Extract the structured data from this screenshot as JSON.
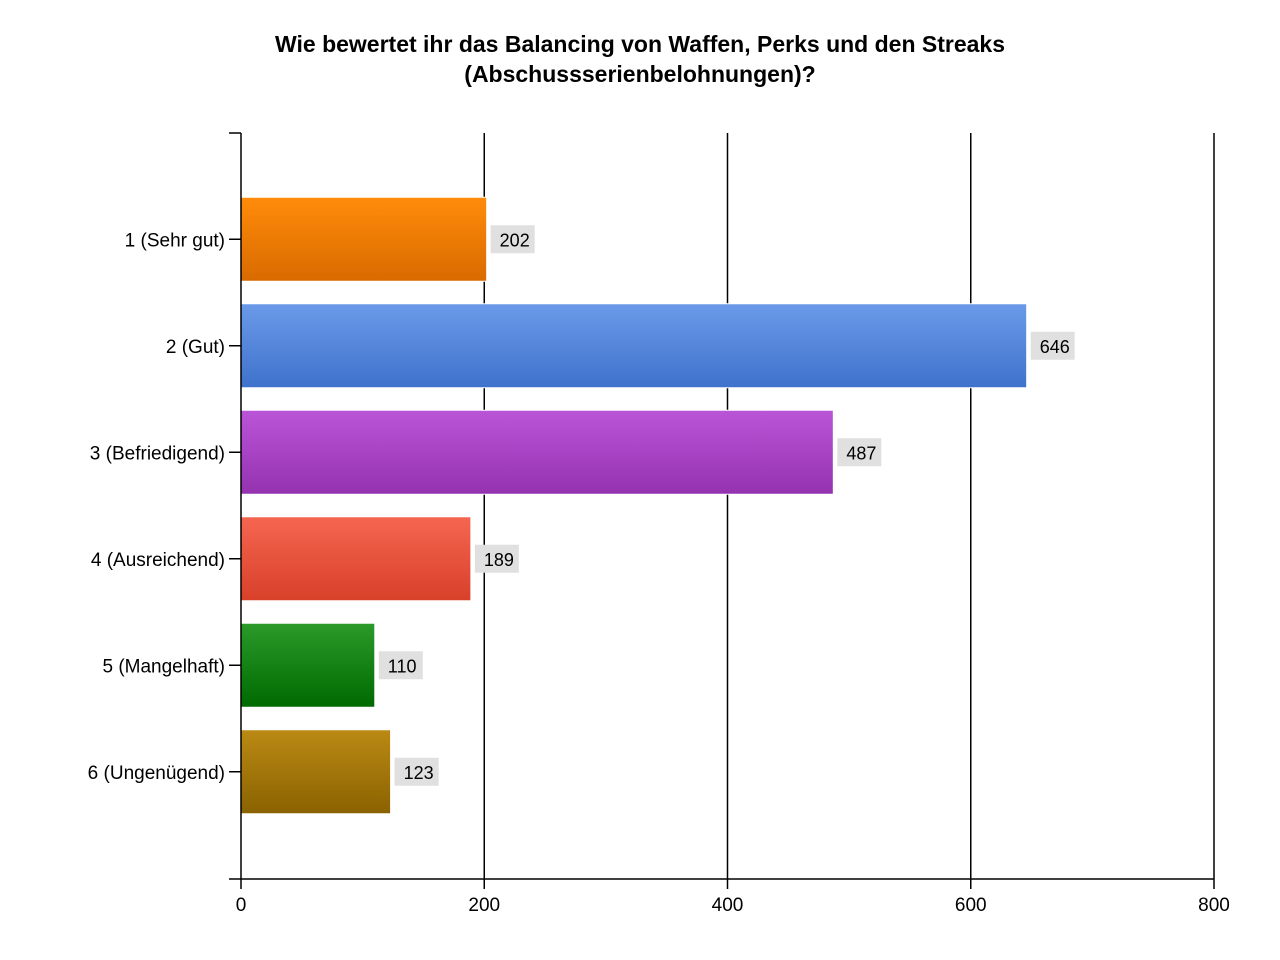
{
  "chart_data": {
    "type": "bar",
    "orientation": "horizontal",
    "title_lines": [
      "Wie bewertet ihr das Balancing von Waffen, Perks und den Streaks",
      "(Abschussserienbelohnungen)?"
    ],
    "categories": [
      "1 (Sehr gut)",
      "2 (Gut)",
      "3 (Befriedigend)",
      "4 (Ausreichend)",
      "5 (Mangelhaft)",
      "6 (Ungenügend)"
    ],
    "values": [
      202,
      646,
      487,
      189,
      110,
      123
    ],
    "value_labels": [
      "202",
      "646",
      "487",
      "189",
      "110",
      "123"
    ],
    "xlim": [
      0,
      800
    ],
    "x_ticks": [
      0,
      200,
      400,
      600,
      800
    ],
    "x_tick_labels": [
      "0",
      "200",
      "400",
      "600",
      "800"
    ],
    "grid": true,
    "bar_colors": [
      [
        "#ff8c0a",
        "#d96a00"
      ],
      [
        "#6a9ae8",
        "#3f72cc"
      ],
      [
        "#bb55d8",
        "#9432b0"
      ],
      [
        "#f56650",
        "#d8402a"
      ],
      [
        "#2a9a2a",
        "#006a00"
      ],
      [
        "#bb8a14",
        "#8a6200"
      ]
    ],
    "value_label_background": "#e0e0e0"
  }
}
